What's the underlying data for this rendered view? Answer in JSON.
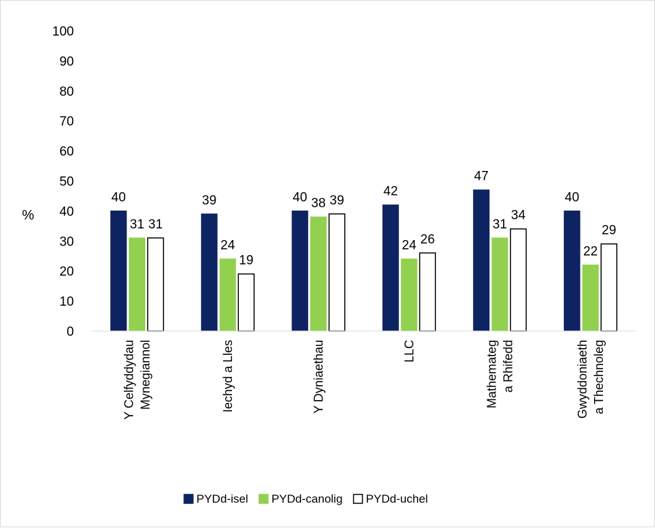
{
  "chart_data": {
    "type": "bar",
    "title": "",
    "xlabel": "",
    "ylabel": "%",
    "ylim": [
      0,
      100
    ],
    "yticks": [
      0,
      10,
      20,
      30,
      40,
      50,
      60,
      70,
      80,
      90,
      100
    ],
    "grid": false,
    "legend_position": "bottom",
    "categories": [
      [
        "Y Celfyddydau",
        "Mynegiannol"
      ],
      [
        "Iechyd a Lles"
      ],
      [
        "Y Dyniaethau"
      ],
      [
        "LLC"
      ],
      [
        "Mathemateg",
        "a Rhifedd"
      ],
      [
        "Gwyddoniaeth",
        "a Thechnoleg"
      ]
    ],
    "series": [
      {
        "name": "PYDd-isel",
        "color": "#0e2361",
        "values": [
          40,
          39,
          40,
          42,
          47,
          40
        ]
      },
      {
        "name": "PYDd-canolig",
        "color": "#92d050",
        "values": [
          31,
          24,
          38,
          24,
          31,
          22
        ]
      },
      {
        "name": "PYDd-uchel",
        "color": "#ffffff",
        "values": [
          31,
          19,
          39,
          26,
          34,
          29
        ]
      }
    ]
  }
}
